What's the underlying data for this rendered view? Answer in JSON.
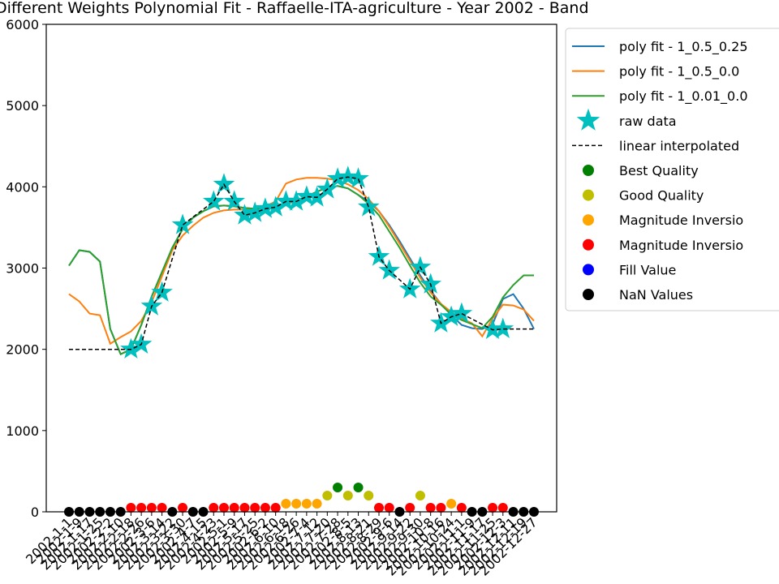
{
  "chart_data": {
    "type": "line",
    "title": "Different Weights Polynomial Fit - Raffaelle-ITA-agriculture - Year 2002 - Band",
    "categories": [
      "2002-1-1",
      "2002-1-9",
      "2002-1-17",
      "2002-1-25",
      "2002-2-2",
      "2002-2-10",
      "2002-2-18",
      "2002-2-26",
      "2002-3-6",
      "2002-3-14",
      "2002-3-22",
      "2002-3-30",
      "2002-4-7",
      "2002-4-15",
      "2002-4-23",
      "2002-5-1",
      "2002-5-9",
      "2002-5-17",
      "2002-5-25",
      "2002-6-2",
      "2002-6-10",
      "2002-6-18",
      "2002-6-26",
      "2002-7-4",
      "2002-7-12",
      "2002-7-20",
      "2002-7-28",
      "2002-8-5",
      "2002-8-13",
      "2002-8-21",
      "2002-8-29",
      "2002-9-6",
      "2002-9-14",
      "2002-9-22",
      "2002-9-30",
      "2002-10-8",
      "2002-10-16",
      "2002-10-24",
      "2002-11-1",
      "2002-11-9",
      "2002-11-17",
      "2002-11-25",
      "2002-12-3",
      "2002-12-11",
      "2002-12-19",
      "2002-12-27"
    ],
    "ylim": [
      0,
      6000
    ],
    "yticks": [
      0,
      1000,
      2000,
      3000,
      4000,
      5000,
      6000
    ],
    "series": [
      {
        "name": "poly fit - 1_0.5_0.25",
        "color": "#1f77b4",
        "kind": "line",
        "values": [
          3030,
          3220,
          3200,
          3080,
          2250,
          1940,
          2000,
          2300,
          2650,
          2950,
          3250,
          3480,
          3620,
          3700,
          3760,
          3770,
          3760,
          3740,
          3730,
          3740,
          3760,
          3790,
          3830,
          3880,
          3940,
          3990,
          4010,
          3980,
          3900,
          3820,
          3700,
          3530,
          3330,
          3120,
          2910,
          2720,
          2560,
          2420,
          2300,
          2260,
          2250,
          2310,
          2620,
          2680,
          2500,
          2250
        ]
      },
      {
        "name": "poly fit - 1_0.5_0.0",
        "color": "#ff7f0e",
        "kind": "line",
        "values": [
          2680,
          2590,
          2440,
          2420,
          2070,
          2150,
          2220,
          2350,
          2580,
          2900,
          3220,
          3400,
          3520,
          3620,
          3680,
          3710,
          3720,
          3720,
          3730,
          3760,
          3820,
          4040,
          4090,
          4110,
          4110,
          4100,
          4080,
          4030,
          3960,
          3850,
          3700,
          3510,
          3300,
          3090,
          2880,
          2700,
          2560,
          2460,
          2380,
          2320,
          2160,
          2380,
          2550,
          2540,
          2490,
          2350
        ]
      },
      {
        "name": "poly fit - 1_0.01_0.0",
        "color": "#2ca02c",
        "kind": "line",
        "values": [
          3030,
          3220,
          3200,
          3080,
          2250,
          1940,
          2000,
          2300,
          2650,
          2950,
          3250,
          3480,
          3620,
          3700,
          3760,
          3770,
          3760,
          3740,
          3730,
          3740,
          3760,
          3790,
          3830,
          3880,
          3940,
          3990,
          4010,
          3980,
          3900,
          3790,
          3650,
          3450,
          3250,
          3030,
          2820,
          2650,
          2550,
          2430,
          2360,
          2310,
          2260,
          2400,
          2640,
          2790,
          2910,
          2910
        ]
      },
      {
        "name": "raw data",
        "color": "#00bfbf",
        "kind": "star",
        "values": [
          null,
          null,
          null,
          null,
          null,
          null,
          2000,
          2060,
          2530,
          2700,
          null,
          3530,
          null,
          null,
          3820,
          4030,
          3820,
          3650,
          3680,
          3730,
          3750,
          3820,
          3820,
          3880,
          3870,
          3970,
          4100,
          4120,
          4100,
          3750,
          3140,
          2970,
          null,
          2740,
          3010,
          2800,
          2320,
          2400,
          2440,
          null,
          null,
          2240,
          2250,
          null,
          null,
          null
        ]
      },
      {
        "name": "linear interpolated",
        "color": "#000000",
        "kind": "dashed",
        "values": [
          2000,
          2000,
          2000,
          2000,
          2000,
          2000,
          2000,
          2060,
          2530,
          2700,
          3115,
          3530,
          3627,
          3723,
          3820,
          4030,
          3820,
          3650,
          3680,
          3730,
          3750,
          3820,
          3820,
          3880,
          3870,
          3970,
          4100,
          4120,
          4100,
          3750,
          3140,
          2970,
          2855,
          2740,
          3010,
          2800,
          2320,
          2400,
          2440,
          2373,
          2307,
          2240,
          2250,
          2250,
          2250,
          2250
        ]
      },
      {
        "name": "Best Quality",
        "color": "#008000",
        "kind": "dot",
        "values": [
          null,
          null,
          null,
          null,
          null,
          null,
          null,
          null,
          null,
          null,
          null,
          null,
          null,
          null,
          null,
          null,
          null,
          null,
          null,
          null,
          null,
          null,
          null,
          null,
          null,
          null,
          300,
          null,
          300,
          null,
          null,
          null,
          null,
          null,
          null,
          null,
          null,
          null,
          null,
          null,
          null,
          null,
          null,
          null,
          null,
          null
        ]
      },
      {
        "name": "Good Quality",
        "color": "#bfbf00",
        "kind": "dot",
        "values": [
          null,
          null,
          null,
          null,
          null,
          null,
          null,
          null,
          null,
          null,
          null,
          null,
          null,
          null,
          null,
          null,
          null,
          null,
          null,
          null,
          null,
          null,
          null,
          null,
          null,
          200,
          null,
          200,
          null,
          200,
          null,
          null,
          null,
          null,
          200,
          null,
          null,
          null,
          null,
          null,
          null,
          null,
          null,
          null,
          null,
          null
        ]
      },
      {
        "name": "Magnitude Inversio",
        "color": "#ffa500",
        "kind": "dot",
        "values": [
          null,
          null,
          null,
          null,
          null,
          null,
          null,
          null,
          null,
          null,
          null,
          null,
          null,
          null,
          null,
          null,
          null,
          null,
          null,
          null,
          null,
          100,
          100,
          100,
          100,
          null,
          null,
          null,
          null,
          null,
          null,
          null,
          null,
          null,
          null,
          null,
          null,
          100,
          null,
          null,
          null,
          null,
          null,
          null,
          null,
          null
        ]
      },
      {
        "name": "Magnitude Inversio",
        "color": "#ff0000",
        "kind": "dot",
        "values": [
          null,
          null,
          null,
          null,
          null,
          null,
          50,
          50,
          50,
          50,
          null,
          50,
          null,
          null,
          50,
          50,
          50,
          50,
          50,
          50,
          50,
          null,
          null,
          null,
          null,
          null,
          null,
          null,
          null,
          null,
          50,
          50,
          null,
          50,
          null,
          50,
          50,
          null,
          50,
          null,
          null,
          50,
          50,
          null,
          null,
          null
        ]
      },
      {
        "name": "Fill Value",
        "color": "#0000ff",
        "kind": "dot",
        "values": [
          null,
          null,
          null,
          null,
          null,
          null,
          null,
          null,
          null,
          null,
          null,
          null,
          null,
          null,
          null,
          null,
          null,
          null,
          null,
          null,
          null,
          null,
          null,
          null,
          null,
          null,
          null,
          null,
          null,
          null,
          null,
          null,
          null,
          null,
          null,
          null,
          null,
          null,
          null,
          null,
          null,
          null,
          null,
          null,
          null,
          null
        ]
      },
      {
        "name": "NaN Values",
        "color": "#000000",
        "kind": "dot",
        "values": [
          0,
          0,
          0,
          0,
          0,
          0,
          null,
          null,
          null,
          null,
          0,
          null,
          0,
          0,
          null,
          null,
          null,
          null,
          null,
          null,
          null,
          null,
          null,
          null,
          null,
          null,
          null,
          null,
          null,
          null,
          null,
          null,
          0,
          null,
          null,
          null,
          null,
          null,
          null,
          0,
          0,
          null,
          null,
          0,
          0,
          0
        ]
      }
    ]
  }
}
